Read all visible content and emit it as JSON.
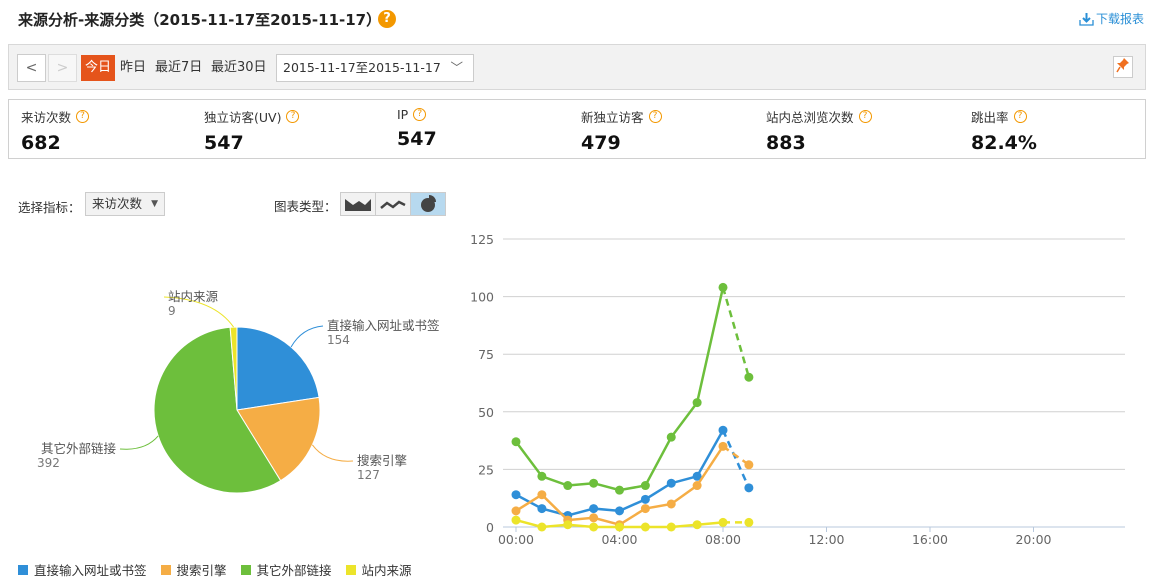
{
  "header": {
    "title": "来源分析-来源分类（2015-11-17至2015-11-17）",
    "help": "?",
    "download": "下载报表"
  },
  "toolbar": {
    "prev": "<",
    "next": ">",
    "quick": [
      "今日",
      "昨日",
      "最近7日",
      "最近30日"
    ],
    "active_quick": "今日",
    "date_range": "2015-11-17至2015-11-17"
  },
  "metrics": [
    {
      "label": "来访次数",
      "value": "682"
    },
    {
      "label": "独立访客(UV)",
      "value": "547"
    },
    {
      "label": "IP",
      "value": "547"
    },
    {
      "label": "新独立访客",
      "value": "479"
    },
    {
      "label": "站内总浏览次数",
      "value": "883"
    },
    {
      "label": "跳出率",
      "value": "82.4%"
    }
  ],
  "controls": {
    "metric_label": "选择指标：",
    "metric_value": "来访次数",
    "chart_type_label": "图表类型：",
    "chart_types": [
      "area-chart-icon",
      "line-chart-icon",
      "pie-chart-icon"
    ],
    "active_chart_type": "pie-chart-icon"
  },
  "colors": {
    "直接输入网址或书签": "#2f8fd8",
    "搜索引擎": "#f5ad45",
    "其它外部链接": "#6dbf3c",
    "站内来源": "#ece42a",
    "accent": "#e5541b"
  },
  "chart_data": [
    {
      "type": "pie",
      "slices": [
        {
          "label": "直接输入网址或书签",
          "value": 154
        },
        {
          "label": "搜索引擎",
          "value": 127
        },
        {
          "label": "其它外部链接",
          "value": 392
        },
        {
          "label": "站内来源",
          "value": 9
        }
      ],
      "legend": "bottom-left"
    },
    {
      "type": "line",
      "x": [
        "00:00",
        "01:00",
        "02:00",
        "03:00",
        "04:00",
        "05:00",
        "06:00",
        "07:00",
        "08:00",
        "09:00"
      ],
      "xticks": [
        "00:00",
        "04:00",
        "08:00",
        "12:00",
        "16:00",
        "20:00"
      ],
      "xlim": [
        "00:00",
        "23:00"
      ],
      "yticks": [
        0,
        25,
        50,
        75,
        100,
        125
      ],
      "ylim": [
        0,
        125
      ],
      "grid": true,
      "last_segment_dashed": true,
      "series": [
        {
          "name": "直接输入网址或书签",
          "values": [
            14,
            8,
            5,
            8,
            7,
            12,
            19,
            22,
            42,
            17
          ]
        },
        {
          "name": "搜索引擎",
          "values": [
            7,
            14,
            3,
            4,
            1,
            8,
            10,
            18,
            35,
            27
          ]
        },
        {
          "name": "其它外部链接",
          "values": [
            37,
            22,
            18,
            19,
            16,
            18,
            39,
            54,
            104,
            65
          ]
        },
        {
          "name": "站内来源",
          "values": [
            3,
            0,
            1,
            0,
            0,
            0,
            0,
            1,
            2,
            2
          ]
        }
      ]
    }
  ]
}
